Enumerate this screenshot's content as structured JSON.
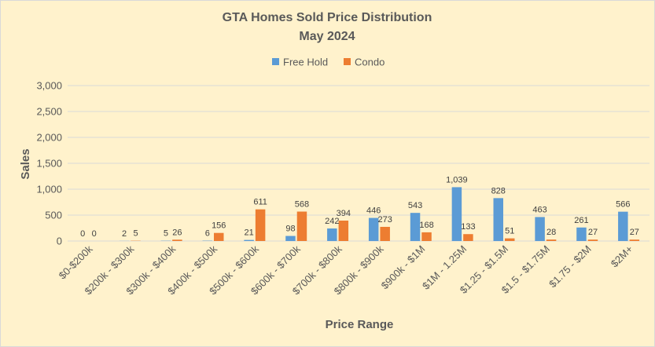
{
  "chart_data": {
    "type": "bar",
    "title": "GTA Homes Sold Price Distribution",
    "subtitle": "May 2024",
    "xlabel": "Price Range",
    "ylabel": "Sales",
    "ylim": [
      0,
      3000
    ],
    "yticks": [
      "0",
      "500",
      "1,000",
      "1,500",
      "2,000",
      "2,500",
      "3,000"
    ],
    "grid": true,
    "legend_position": "top",
    "categories": [
      "$0-$200k",
      "$200k - $300k",
      "$300k - $400k",
      "$400k - $500k",
      "$500k - $600k",
      "$600k - $700k",
      "$700k - $800k",
      "$800k - $900k",
      "$900k - $1M",
      "$1M - 1.25M",
      "$1.25 - $1.5M",
      "$1.5 - $1.75M",
      "$1.75 - $2M",
      "$2M+"
    ],
    "series": [
      {
        "name": "Free Hold",
        "color": "#5B9BD5",
        "values": [
          0,
          2,
          5,
          6,
          21,
          98,
          242,
          446,
          543,
          1039,
          828,
          463,
          261,
          566
        ],
        "labels": [
          "0",
          "2",
          "5",
          "6",
          "21",
          "98",
          "242",
          "446",
          "543",
          "1,039",
          "828",
          "463",
          "261",
          "566"
        ]
      },
      {
        "name": "Condo",
        "color": "#ED7D31",
        "values": [
          0,
          5,
          26,
          156,
          611,
          568,
          394,
          273,
          168,
          133,
          51,
          28,
          27,
          27
        ],
        "labels": [
          "0",
          "5",
          "26",
          "156",
          "611",
          "568",
          "394",
          "273",
          "168",
          "133",
          "51",
          "28",
          "27",
          "27"
        ]
      }
    ]
  }
}
